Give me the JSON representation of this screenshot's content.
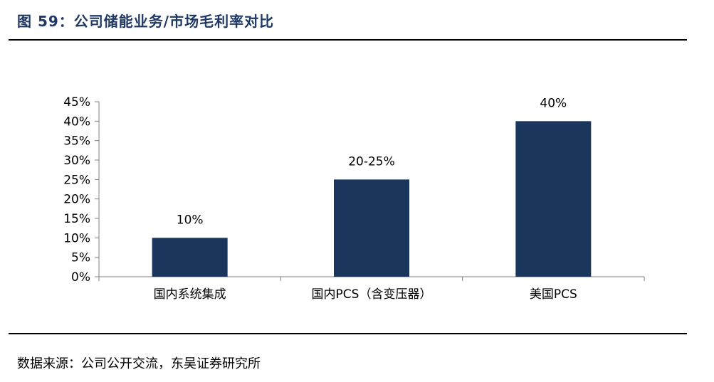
{
  "figure": {
    "title": "图 59：公司储能业务/市场毛利率对比",
    "source": "数据来源：公司公开交流，东吴证券研究所"
  },
  "chart_data": {
    "type": "bar",
    "categories": [
      "国内系统集成",
      "国内PCS（含变压器）",
      "美国PCS"
    ],
    "values": [
      10,
      25,
      40
    ],
    "data_labels": [
      "10%",
      "20-25%",
      "40%"
    ],
    "y_ticks": [
      "0%",
      "5%",
      "10%",
      "15%",
      "20%",
      "25%",
      "30%",
      "35%",
      "40%",
      "45%"
    ],
    "ylim": [
      0,
      45
    ],
    "bar_color": "#1B365D",
    "grid": false,
    "legend": false
  }
}
